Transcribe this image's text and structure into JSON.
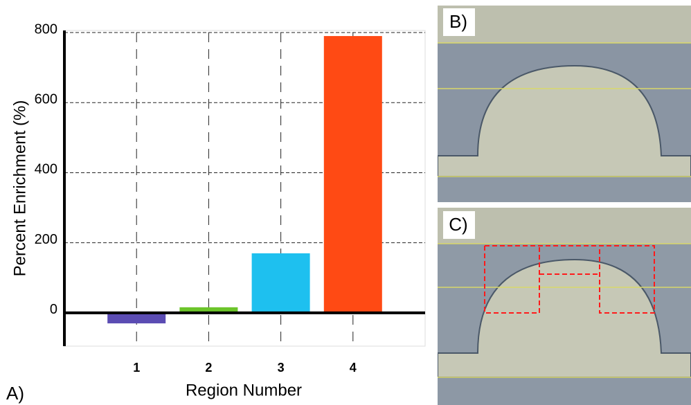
{
  "chart_data": {
    "type": "bar",
    "x": [
      1,
      2,
      3,
      4
    ],
    "xlim": [
      0,
      5
    ],
    "xticks": [
      1,
      2,
      3,
      4
    ],
    "values": [
      -30,
      16,
      170,
      790
    ],
    "colors": [
      "#5b4cb3",
      "#6cc42a",
      "#1ec0ef",
      "#ff4a14"
    ],
    "ylim": [
      -95,
      800
    ],
    "yticks": [
      0,
      200,
      400,
      600,
      800
    ],
    "ylabel": "Percent Enrichment (%)",
    "xlabel": "Region Number",
    "grid": true
  },
  "panels": {
    "a": "A)",
    "b": "B)",
    "c": "C)"
  }
}
